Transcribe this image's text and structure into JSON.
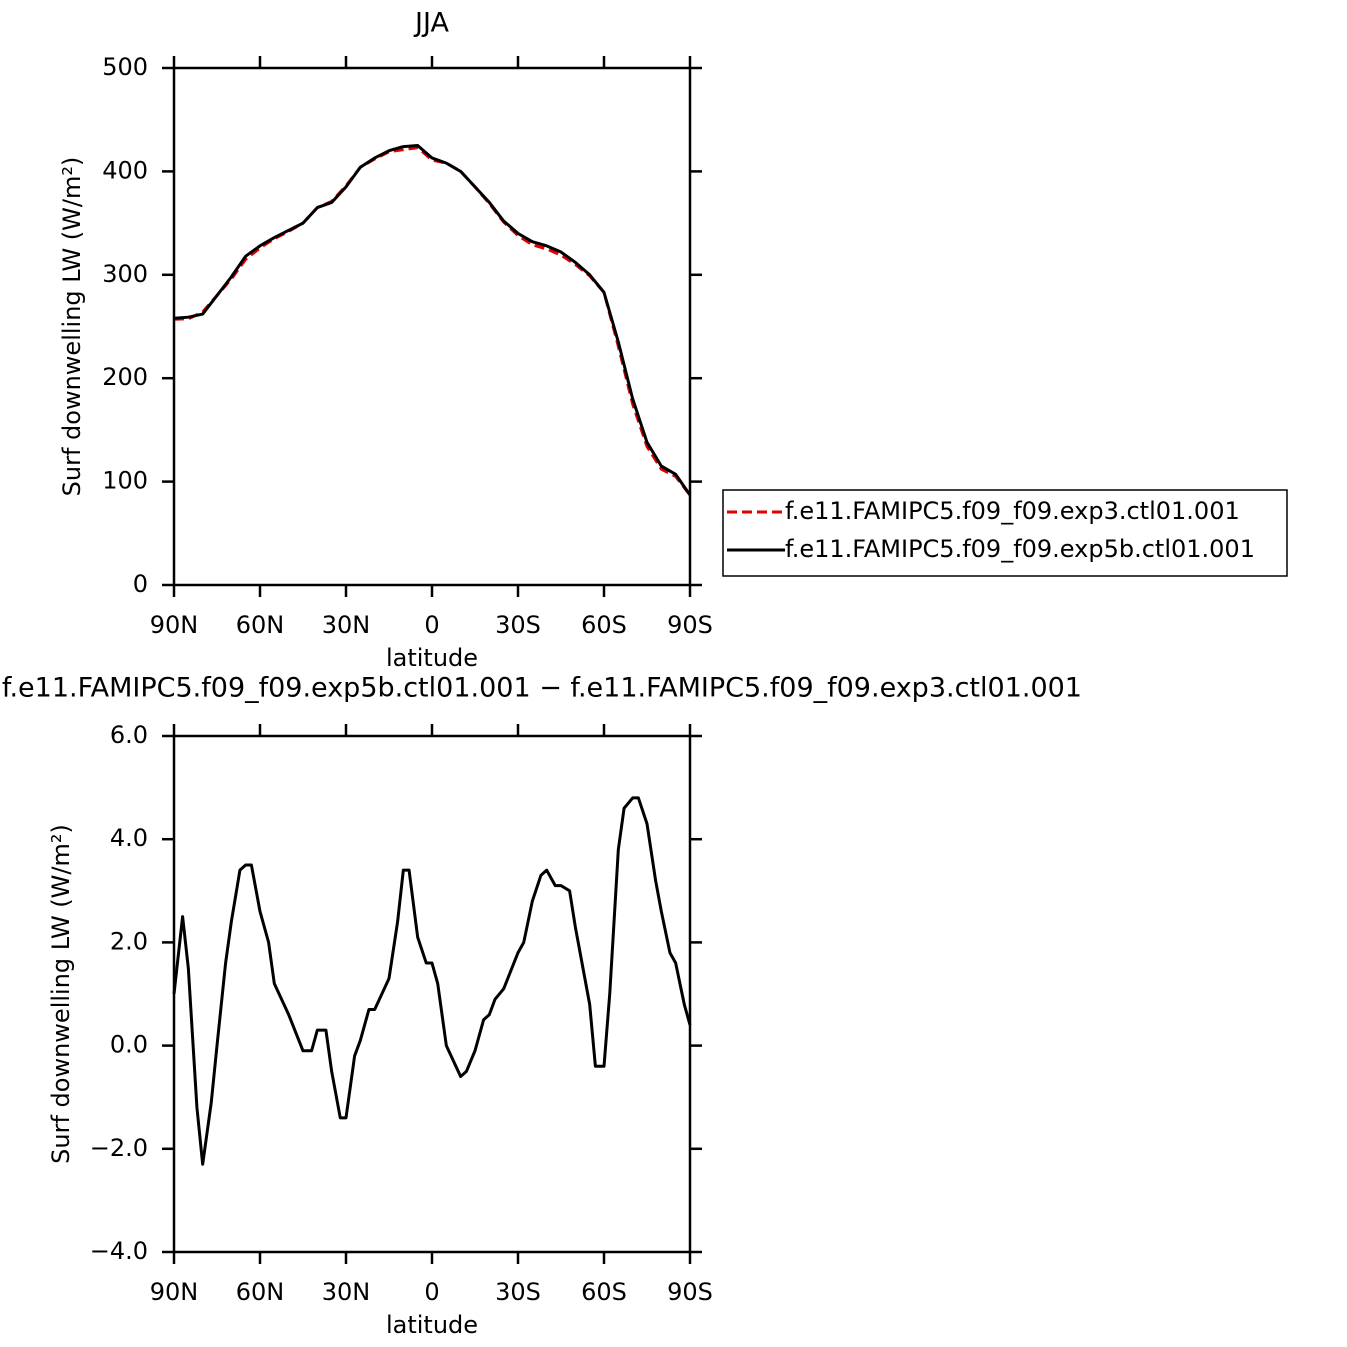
{
  "chart_data": [
    {
      "type": "line",
      "title": "JJA",
      "xlabel": "latitude",
      "ylabel": "Surf downwelling LW (W/m²)",
      "x": [
        90,
        85,
        80,
        75,
        70,
        65,
        60,
        55,
        50,
        45,
        40,
        35,
        30,
        25,
        20,
        15,
        10,
        5,
        0,
        -5,
        -10,
        -15,
        -20,
        -25,
        -30,
        -35,
        -40,
        -45,
        -50,
        -55,
        -60,
        -65,
        -70,
        -75,
        -80,
        -85,
        -90
      ],
      "series": [
        {
          "name": "f.e11.FAMIPC5.f09_f09.exp3.ctl01.001",
          "color": "#e00000",
          "style": "dashed",
          "values": [
            257,
            257.5,
            264,
            280,
            296,
            315,
            326,
            335,
            342,
            350,
            365,
            371,
            386,
            404,
            412,
            419,
            421,
            423,
            411,
            408,
            400,
            385,
            369,
            351,
            338,
            329,
            325,
            319,
            310,
            299,
            283,
            231,
            175,
            134,
            112,
            105,
            87
          ]
        },
        {
          "name": "f.e11.FAMIPC5.f09_f09.exp5b.ctl01.001",
          "color": "#000000",
          "style": "solid",
          "values": [
            258,
            259,
            262,
            280,
            298,
            318,
            328,
            336,
            343,
            350,
            365,
            370,
            385,
            404,
            413,
            420,
            424,
            425,
            413,
            408,
            400,
            385,
            370,
            352,
            340,
            332,
            328,
            322,
            312,
            300,
            283,
            235,
            180,
            138,
            115,
            107,
            87
          ]
        }
      ],
      "xlim": [
        90,
        -90
      ],
      "xticks": [
        {
          "value": 90,
          "label": "90N"
        },
        {
          "value": 60,
          "label": "60N"
        },
        {
          "value": 30,
          "label": "30N"
        },
        0,
        {
          "value": -30,
          "label": "30S"
        },
        {
          "value": -60,
          "label": "60S"
        },
        {
          "value": -90,
          "label": "90S"
        }
      ],
      "ylim": [
        0,
        500
      ],
      "yticks": [
        0,
        100,
        200,
        300,
        400,
        500
      ],
      "legend": "right"
    },
    {
      "type": "line",
      "title": "f.e11.FAMIPC5.f09_f09.exp5b.ctl01.001  −  f.e11.FAMIPC5.f09_f09.exp3.ctl01.001",
      "xlabel": "latitude",
      "ylabel": "Surf downwelling LW (W/m²)",
      "x": [
        90,
        87,
        85,
        82,
        80,
        77,
        75,
        72,
        70,
        67,
        65,
        63,
        60,
        57,
        55,
        50,
        45,
        42,
        40,
        37,
        35,
        32,
        30,
        27,
        25,
        22,
        20,
        15,
        12,
        10,
        8,
        5,
        2,
        0,
        -2,
        -5,
        -10,
        -12,
        -15,
        -18,
        -20,
        -22,
        -25,
        -30,
        -32,
        -35,
        -38,
        -40,
        -43,
        -45,
        -48,
        -50,
        -55,
        -57,
        -60,
        -62,
        -65,
        -67,
        -70,
        -72,
        -75,
        -78,
        -80,
        -83,
        -85,
        -88,
        -90
      ],
      "values": [
        1.0,
        2.5,
        1.5,
        -1.2,
        -2.3,
        -1.1,
        0.0,
        1.6,
        2.4,
        3.4,
        3.5,
        3.5,
        2.6,
        2.0,
        1.2,
        0.6,
        -0.1,
        -0.1,
        0.3,
        0.3,
        -0.5,
        -1.4,
        -1.4,
        -0.2,
        0.1,
        0.7,
        0.7,
        1.3,
        2.4,
        3.4,
        3.4,
        2.1,
        1.6,
        1.6,
        1.2,
        0.0,
        -0.6,
        -0.5,
        -0.1,
        0.5,
        0.6,
        0.9,
        1.1,
        1.8,
        2.0,
        2.8,
        3.3,
        3.4,
        3.1,
        3.1,
        3.0,
        2.3,
        0.8,
        -0.4,
        -0.4,
        1.0,
        3.8,
        4.6,
        4.8,
        4.8,
        4.3,
        3.2,
        2.6,
        1.8,
        1.6,
        0.8,
        0.4
      ],
      "color": "#000000",
      "xlim": [
        90,
        -90
      ],
      "xticks": [
        {
          "value": 90,
          "label": "90N"
        },
        {
          "value": 60,
          "label": "60N"
        },
        {
          "value": 30,
          "label": "30N"
        },
        0,
        {
          "value": -30,
          "label": "30S"
        },
        {
          "value": -60,
          "label": "60S"
        },
        {
          "value": -90,
          "label": "90S"
        }
      ],
      "ylim": [
        -4,
        6
      ],
      "yticks": [
        {
          "value": -4,
          "label": "−4.0"
        },
        {
          "value": -2,
          "label": "−2.0"
        },
        {
          "value": 0,
          "label": "0.0"
        },
        {
          "value": 2,
          "label": "2.0"
        },
        {
          "value": 4,
          "label": "4.0"
        },
        {
          "value": 6,
          "label": "6.0"
        }
      ]
    }
  ]
}
